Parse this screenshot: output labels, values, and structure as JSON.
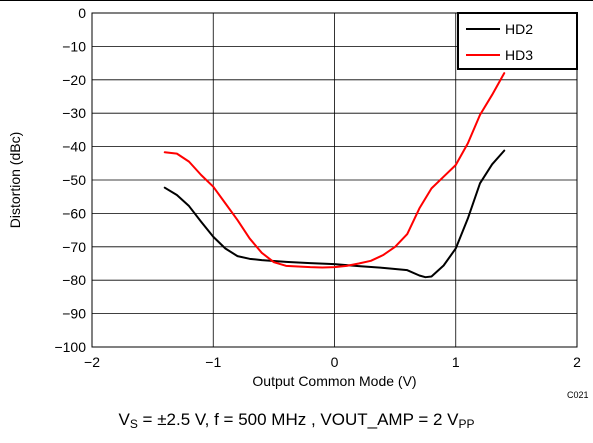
{
  "chart_data": {
    "type": "line",
    "xlabel": "Output Common Mode (V)",
    "ylabel": "Distortion (dBc)",
    "xlim": [
      -2,
      2
    ],
    "ylim": [
      -100,
      0
    ],
    "x_ticks": [
      -2,
      -1,
      0,
      1,
      2
    ],
    "y_ticks": [
      0,
      -10,
      -20,
      -30,
      -40,
      -50,
      -60,
      -70,
      -80,
      -90,
      -100
    ],
    "grid": true,
    "legend": "top-right",
    "figure_code": "C021",
    "series": [
      {
        "name": "HD2",
        "color": "#000000",
        "points": [
          [
            -1.4,
            -52.3
          ],
          [
            -1.3,
            -54.5
          ],
          [
            -1.2,
            -57.8
          ],
          [
            -1.1,
            -62.5
          ],
          [
            -1.0,
            -67.0
          ],
          [
            -0.9,
            -70.5
          ],
          [
            -0.8,
            -72.8
          ],
          [
            -0.7,
            -73.6
          ],
          [
            -0.6,
            -74.0
          ],
          [
            -0.4,
            -74.5
          ],
          [
            -0.2,
            -74.9
          ],
          [
            0.0,
            -75.2
          ],
          [
            0.2,
            -75.8
          ],
          [
            0.4,
            -76.3
          ],
          [
            0.6,
            -77.0
          ],
          [
            0.7,
            -78.6
          ],
          [
            0.75,
            -79.1
          ],
          [
            0.8,
            -78.9
          ],
          [
            0.9,
            -75.6
          ],
          [
            1.0,
            -70.5
          ],
          [
            1.1,
            -61.5
          ],
          [
            1.2,
            -51.0
          ],
          [
            1.3,
            -45.3
          ],
          [
            1.4,
            -41.2
          ]
        ]
      },
      {
        "name": "HD3",
        "color": "#ff0000",
        "points": [
          [
            -1.4,
            -41.7
          ],
          [
            -1.3,
            -42.1
          ],
          [
            -1.2,
            -44.5
          ],
          [
            -1.1,
            -48.5
          ],
          [
            -1.0,
            -52.0
          ],
          [
            -0.9,
            -57.0
          ],
          [
            -0.8,
            -62.0
          ],
          [
            -0.7,
            -67.5
          ],
          [
            -0.6,
            -71.8
          ],
          [
            -0.5,
            -74.6
          ],
          [
            -0.4,
            -75.7
          ],
          [
            -0.3,
            -75.9
          ],
          [
            -0.2,
            -76.1
          ],
          [
            -0.1,
            -76.2
          ],
          [
            0.0,
            -76.1
          ],
          [
            0.1,
            -75.7
          ],
          [
            0.2,
            -75.0
          ],
          [
            0.3,
            -74.2
          ],
          [
            0.4,
            -72.5
          ],
          [
            0.5,
            -70.0
          ],
          [
            0.6,
            -66.2
          ],
          [
            0.7,
            -58.5
          ],
          [
            0.8,
            -52.5
          ],
          [
            0.9,
            -49.0
          ],
          [
            1.0,
            -45.5
          ],
          [
            1.1,
            -39.0
          ],
          [
            1.2,
            -30.5
          ],
          [
            1.3,
            -24.5
          ],
          [
            1.4,
            -18.0
          ]
        ]
      }
    ]
  },
  "caption": {
    "vs_main": "V",
    "vs_sub": "S",
    "mid": " = ±2.5 V, f = 500 MHz , VOUT_AMP = 2 V",
    "pp_sub": "PP"
  }
}
